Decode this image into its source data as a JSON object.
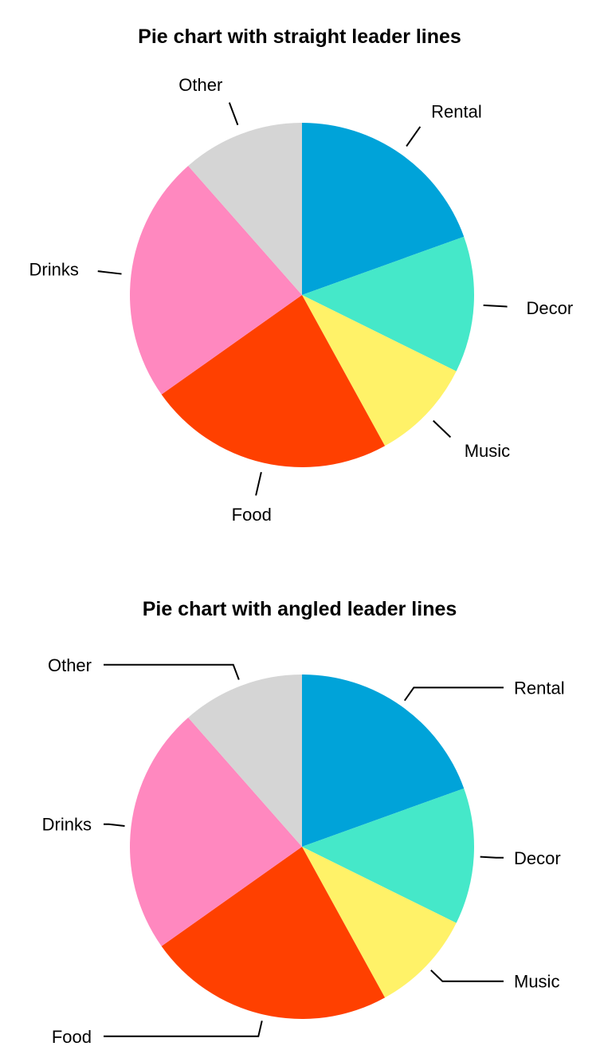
{
  "chart_data": [
    {
      "type": "pie",
      "title": "Pie chart with straight leader lines",
      "leader_lines": "straight",
      "start_angle": "12 o'clock",
      "direction": "clockwise",
      "categories": [
        "Rental",
        "Decor",
        "Music",
        "Food",
        "Drinks",
        "Other"
      ],
      "values": [
        19.5,
        12.8,
        9.7,
        23.2,
        23.3,
        11.5
      ],
      "colors": [
        "#00A3D9",
        "#45E8C9",
        "#FFF268",
        "#FF4000",
        "#FF88BF",
        "#D5D5D5"
      ]
    },
    {
      "type": "pie",
      "title": "Pie chart with angled leader lines",
      "leader_lines": "angled",
      "start_angle": "12 o'clock",
      "direction": "clockwise",
      "categories": [
        "Rental",
        "Decor",
        "Music",
        "Food",
        "Drinks",
        "Other"
      ],
      "values": [
        19.5,
        12.8,
        9.7,
        23.2,
        23.3,
        11.5
      ],
      "colors": [
        "#00A3D9",
        "#45E8C9",
        "#FFF268",
        "#FF4000",
        "#FF88BF",
        "#D5D5D5"
      ]
    }
  ]
}
